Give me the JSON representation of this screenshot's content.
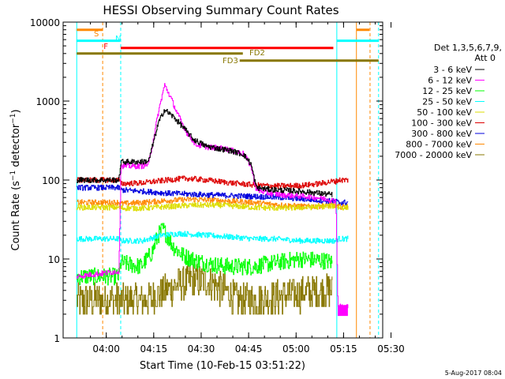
{
  "chart_data": {
    "type": "line",
    "title": "HESSI Observing Summary Count Rates",
    "xlabel": "Start Time (10-Feb-15 03:51:22)",
    "ylabel": "Count Rate (s⁻¹ detector⁻¹)",
    "ylog": true,
    "ylim": [
      1,
      10000
    ],
    "xlim": [
      -5.0,
      96.0
    ],
    "x_ticks": [
      {
        "label": "04:00",
        "x": 8.63
      },
      {
        "label": "04:15",
        "x": 23.63
      },
      {
        "label": "04:30",
        "x": 38.63
      },
      {
        "label": "04:45",
        "x": 53.63
      },
      {
        "label": "05:00",
        "x": 68.63
      },
      {
        "label": "05:15",
        "x": 83.63
      },
      {
        "label": "05:30",
        "x": 98.63
      }
    ],
    "y_ticks": [
      {
        "label": "1",
        "y": 1
      },
      {
        "label": "10",
        "y": 10
      },
      {
        "label": "100",
        "y": 100
      },
      {
        "label": "1000",
        "y": 1000
      },
      {
        "label": "10000",
        "y": 10000
      }
    ],
    "legend": {
      "header_line1": "Det 1,3,5,6,7,9,",
      "header_line2": "Att 0",
      "placement": "right"
    },
    "series": [
      {
        "name": "3 - 6 keV",
        "color": "#000000",
        "x": [
          -0.7,
          12.6,
          13.2,
          20.0,
          22.0,
          25.0,
          27.0,
          30.0,
          33.0,
          36.0,
          40.0,
          44.0,
          48.0,
          52.0,
          54.3,
          56.0,
          60.0,
          65.0,
          70.0,
          76.0,
          80.0
        ],
        "y": [
          100,
          100,
          170,
          170,
          175,
          520,
          780,
          620,
          460,
          330,
          270,
          250,
          235,
          210,
          160,
          80,
          76,
          74,
          72,
          68,
          65
        ]
      },
      {
        "name": "6 - 12 keV",
        "color": "#ff00ff",
        "x": [
          -0.7,
          12.6,
          13.2,
          20.0,
          22.0,
          25.0,
          27.0,
          29.0,
          31.0,
          34.0,
          37.0,
          41.0,
          46.0,
          52.0,
          54.3,
          56.0,
          60.0,
          66.0,
          72.0,
          78.0,
          80.0,
          81.2,
          81.8,
          85.0
        ],
        "y": [
          6,
          7,
          150,
          150,
          160,
          700,
          1600,
          1100,
          700,
          400,
          280,
          260,
          250,
          215,
          150,
          75,
          68,
          64,
          62,
          58,
          55,
          55,
          2.5,
          2.5
        ]
      },
      {
        "name": "12 - 25 keV",
        "color": "#00ff00",
        "x": [
          -0.7,
          12.6,
          13.2,
          19.5,
          23.0,
          25.0,
          26.5,
          28.0,
          30.0,
          33.0,
          37.0,
          42.0,
          48.0,
          55.0,
          62.0,
          70.0,
          78.0,
          80.0
        ],
        "y": [
          6,
          6,
          9,
          8,
          12,
          20,
          24,
          19,
          14,
          11,
          9.5,
          8.5,
          8,
          8,
          9,
          10,
          9.5,
          9
        ]
      },
      {
        "name": "25 - 50 keV",
        "color": "#00ffff",
        "x": [
          -0.7,
          12.6,
          13.2,
          20.0,
          26.0,
          32.0,
          40.0,
          48.0,
          55.0,
          62.0,
          70.0,
          78.0,
          80.0,
          81.2,
          81.8,
          85.0
        ],
        "y": [
          18,
          18,
          17,
          17,
          20,
          21,
          20,
          19,
          18,
          18,
          17,
          17,
          17,
          17,
          18,
          18
        ]
      },
      {
        "name": "50 - 100 keV",
        "color": "#dddd00",
        "x": [
          -0.7,
          12.6,
          13.2,
          20.0,
          28.0,
          36.0,
          45.0,
          55.0,
          64.0,
          72.0,
          80.0,
          81.2,
          81.8,
          85.0
        ],
        "y": [
          45,
          45,
          44,
          44,
          46,
          48,
          48,
          45,
          44,
          45,
          47,
          47,
          45,
          45
        ]
      },
      {
        "name": "100 - 300 keV",
        "color": "#dd0000",
        "x": [
          -0.7,
          12.6,
          13.2,
          20.0,
          28.0,
          34.0,
          40.0,
          48.0,
          56.0,
          62.0,
          70.0,
          76.0,
          80.0,
          81.2,
          81.8,
          85.0
        ],
        "y": [
          100,
          100,
          90,
          92,
          100,
          105,
          100,
          92,
          86,
          84,
          85,
          90,
          96,
          96,
          100,
          100
        ]
      },
      {
        "name": "300 - 800 keV",
        "color": "#0000dd",
        "x": [
          -0.7,
          12.6,
          13.2,
          20.0,
          28.0,
          36.0,
          45.0,
          55.0,
          64.0,
          72.0,
          80.0,
          81.2,
          81.8,
          85.0
        ],
        "y": [
          80,
          80,
          75,
          72,
          68,
          66,
          64,
          62,
          60,
          57,
          54,
          54,
          52,
          52
        ]
      },
      {
        "name": "800 - 7000 keV",
        "color": "#ff8800",
        "x": [
          -0.7,
          12.6,
          13.2,
          20.0,
          28.0,
          36.0,
          45.0,
          55.0,
          64.0,
          72.0,
          80.0,
          81.2,
          81.8,
          85.0
        ],
        "y": [
          52,
          52,
          50,
          52,
          55,
          57,
          55,
          52,
          48,
          46,
          48,
          48,
          46,
          46
        ]
      },
      {
        "name": "7000 - 20000 keV",
        "color": "#887700",
        "x": [
          -0.7,
          12.6,
          13.2,
          20.0,
          25.0,
          30.0,
          36.0,
          42.0,
          46.0,
          50.0,
          56.0,
          62.0,
          68.0,
          74.0,
          80.0
        ],
        "y": [
          3,
          3,
          3,
          3,
          3.5,
          4.5,
          5.5,
          5,
          4,
          3,
          3,
          3.3,
          3.6,
          3.8,
          4
        ]
      }
    ],
    "bars": [
      {
        "label": "S",
        "color": "#ff8800",
        "y": 8000,
        "segments": [
          [
            -0.7,
            7.5
          ],
          [
            87.7,
            91.8
          ]
        ]
      },
      {
        "label": "N",
        "color": "#00ffff",
        "y": 5800,
        "segments": [
          [
            -0.7,
            13.0
          ],
          [
            81.5,
            94.7
          ]
        ]
      },
      {
        "label": "F",
        "color": "#ff0000",
        "y": 4700,
        "segments": [
          [
            13.2,
            80.4
          ]
        ]
      },
      {
        "label": "FD2",
        "color": "#887700",
        "y": 4000,
        "segments": [
          [
            -0.7,
            51.8
          ]
        ]
      },
      {
        "label": "FD3",
        "color": "#887700",
        "y": 3250,
        "segments": [
          [
            50.8,
            94.7
          ]
        ]
      }
    ],
    "vlines": [
      {
        "x": -0.7,
        "color": "#00ffff",
        "style": "solid"
      },
      {
        "x": 7.5,
        "color": "#ff8800",
        "style": "dashed"
      },
      {
        "x": 13.2,
        "color": "#00ffff",
        "style": "dashed"
      },
      {
        "x": 81.5,
        "color": "#00ffff",
        "style": "solid"
      },
      {
        "x": 87.7,
        "color": "#ff8800",
        "style": "solid"
      },
      {
        "x": 92.0,
        "color": "#ff8800",
        "style": "dashed"
      },
      {
        "x": 94.7,
        "color": "#00ffff",
        "style": "dashed"
      }
    ],
    "footer": "5-Aug-2017 08:04"
  }
}
